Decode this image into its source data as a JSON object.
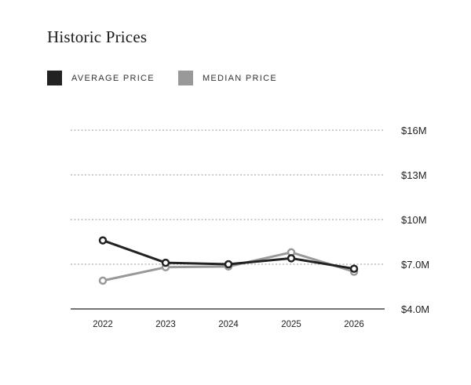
{
  "title": "Historic Prices",
  "legend": [
    {
      "label": "AVERAGE PRICE",
      "color": "#222222"
    },
    {
      "label": "MEDIAN PRICE",
      "color": "#999999"
    }
  ],
  "chart_data": {
    "type": "line",
    "title": "Historic Prices",
    "xlabel": "",
    "ylabel": "",
    "categories": [
      "2022",
      "2023",
      "2024",
      "2025",
      "2026"
    ],
    "y_ticks": [
      4.0,
      7.0,
      10.0,
      13.0,
      16.0
    ],
    "y_tick_labels": [
      "$4.0M",
      "$7.0M",
      "$10M",
      "$13M",
      "$16M"
    ],
    "ylim": [
      4.0,
      16.0
    ],
    "grid": "horizontal dashed",
    "y_axis_position": "right",
    "legend_position": "top-left",
    "series": [
      {
        "name": "AVERAGE PRICE",
        "color": "#222222",
        "values": [
          8.6,
          7.1,
          7.0,
          7.4,
          6.7
        ]
      },
      {
        "name": "MEDIAN PRICE",
        "color": "#999999",
        "values": [
          5.9,
          6.8,
          6.85,
          7.8,
          6.5
        ]
      }
    ]
  }
}
